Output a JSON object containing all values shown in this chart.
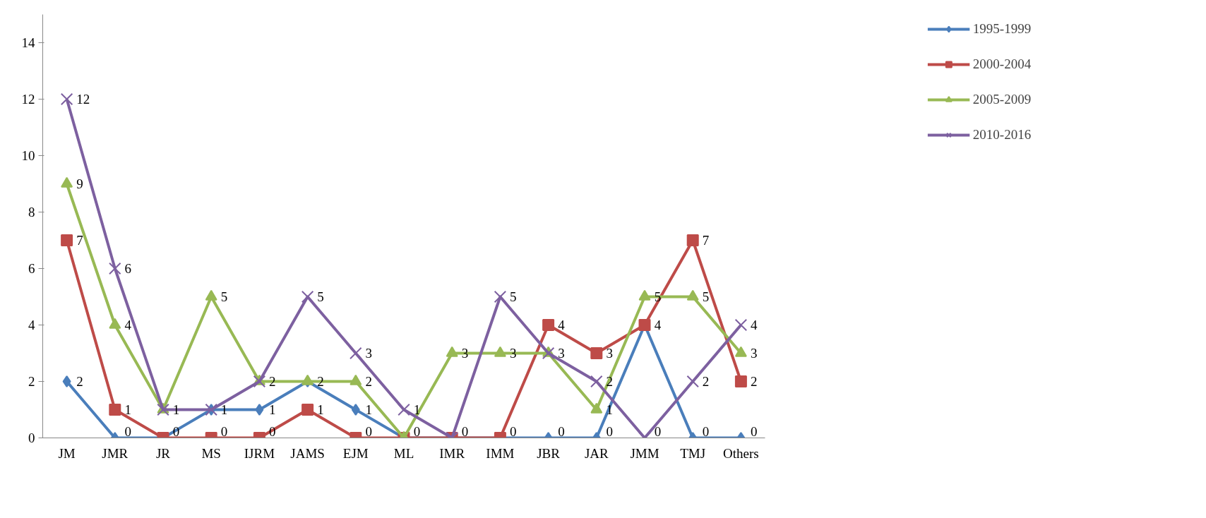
{
  "chart_data": {
    "type": "line",
    "categories": [
      "JM",
      "JMR",
      "JR",
      "MS",
      "IJRM",
      "JAMS",
      "EJM",
      "ML",
      "IMR",
      "IMM",
      "JBR",
      "JAR",
      "JMM",
      "TMJ",
      "Others"
    ],
    "series": [
      {
        "name": "1995-1999",
        "color": "#4a7ebb",
        "marker": "diamond",
        "values": [
          2,
          0,
          0,
          1,
          1,
          2,
          1,
          0,
          0,
          0,
          0,
          0,
          4,
          0,
          0
        ],
        "value_labels": [
          "2",
          "0",
          "0",
          "1",
          "1",
          "2",
          "1",
          "0",
          "0",
          "0",
          "0",
          "0",
          "4",
          "0",
          "0"
        ]
      },
      {
        "name": "2000-2004",
        "color": "#be4b48",
        "marker": "square",
        "values": [
          7,
          1,
          0,
          0,
          0,
          1,
          0,
          0,
          0,
          0,
          4,
          3,
          4,
          7,
          2
        ],
        "value_labels": [
          "7",
          "1",
          null,
          "0",
          "0",
          "1",
          "0",
          null,
          null,
          null,
          "4",
          "3",
          null,
          "7",
          "2"
        ]
      },
      {
        "name": "2005-2009",
        "color": "#98b954",
        "marker": "triangle",
        "values": [
          9,
          4,
          1,
          5,
          2,
          2,
          2,
          0,
          3,
          3,
          3,
          1,
          5,
          5,
          3
        ],
        "value_labels": [
          "9",
          "4",
          "1",
          "5",
          "2",
          null,
          "2",
          null,
          "3",
          "3",
          "3",
          "1",
          "5",
          "5",
          "3"
        ]
      },
      {
        "name": "2010-2016",
        "color": "#7d60a0",
        "marker": "cross",
        "values": [
          12,
          6,
          1,
          1,
          2,
          5,
          3,
          1,
          0,
          5,
          3,
          2,
          0,
          2,
          4
        ],
        "value_labels": [
          "12",
          "6",
          null,
          null,
          null,
          "5",
          "3",
          "1",
          null,
          "5",
          null,
          "2",
          "0",
          "2",
          "4"
        ]
      }
    ],
    "ylim": [
      0,
      15
    ],
    "yticks": [
      0,
      2,
      4,
      6,
      8,
      10,
      12,
      14
    ],
    "grid": false,
    "legend": "top right",
    "line_style": "solid"
  }
}
